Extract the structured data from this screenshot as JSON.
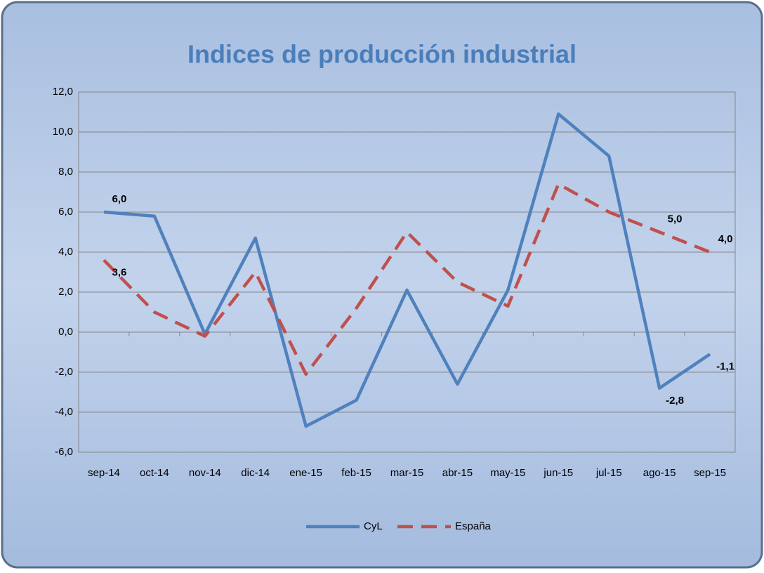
{
  "chart_data": {
    "type": "line",
    "title": "Indices de producción industrial",
    "categories": [
      "sep-14",
      "oct-14",
      "nov-14",
      "dic-14",
      "ene-15",
      "feb-15",
      "mar-15",
      "abr-15",
      "may-15",
      "jun-15",
      "jul-15",
      "ago-15",
      "sep-15"
    ],
    "series": [
      {
        "name": "CyL",
        "color": "#4f81bd",
        "dash": false,
        "values": [
          6.0,
          5.8,
          -0.1,
          4.7,
          -4.7,
          -3.4,
          2.1,
          -2.6,
          2.1,
          10.9,
          8.8,
          -2.8,
          -1.1
        ],
        "value_labels": [
          "6,0",
          null,
          null,
          null,
          null,
          null,
          null,
          null,
          null,
          null,
          null,
          "-2,8",
          "-1,1"
        ]
      },
      {
        "name": "España",
        "color": "#c0504d",
        "dash": true,
        "values": [
          3.6,
          1.0,
          -0.2,
          3.0,
          -2.1,
          1.2,
          5.0,
          2.5,
          1.3,
          7.4,
          6.0,
          5.0,
          4.0
        ],
        "value_labels": [
          "3,6",
          null,
          null,
          null,
          null,
          null,
          null,
          null,
          null,
          null,
          null,
          "5,0",
          "4,0"
        ]
      }
    ],
    "ylim": [
      -6,
      12
    ],
    "yticks": [
      {
        "value": -6,
        "label": "-6,0"
      },
      {
        "value": -4,
        "label": "-4,0"
      },
      {
        "value": -2,
        "label": "-2,0"
      },
      {
        "value": 0,
        "label": "0,0"
      },
      {
        "value": 2,
        "label": "2,0"
      },
      {
        "value": 4,
        "label": "4,0"
      },
      {
        "value": 6,
        "label": "6,0"
      },
      {
        "value": 8,
        "label": "8,0"
      },
      {
        "value": 10,
        "label": "10,0"
      },
      {
        "value": 12,
        "label": "12,0"
      }
    ],
    "grid": true,
    "legend": "bottom"
  }
}
